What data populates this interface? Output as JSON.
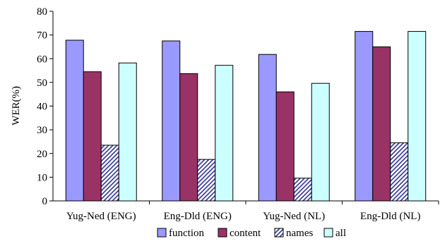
{
  "chart_data": {
    "type": "bar",
    "categories": [
      "Yug-Ned (ENG)",
      "Eng-Dld (ENG)",
      "Yug-Ned (NL)",
      "Eng-Dld (NL)"
    ],
    "series": [
      {
        "name": "function",
        "values": [
          67.8,
          67.5,
          61.8,
          71.5
        ],
        "color": "#9999ff",
        "pattern": "solid"
      },
      {
        "name": "content",
        "values": [
          54.5,
          53.7,
          46.0,
          65.0
        ],
        "color": "#993366",
        "pattern": "solid"
      },
      {
        "name": "names",
        "values": [
          23.5,
          17.5,
          9.6,
          24.5
        ],
        "color": "#333399",
        "pattern": "diagonal-hatch"
      },
      {
        "name": "all",
        "values": [
          58.2,
          57.2,
          49.6,
          71.5
        ],
        "color": "#ccffff",
        "pattern": "solid"
      }
    ],
    "title": "",
    "xlabel": "",
    "ylabel": "WER(%)",
    "ylim": [
      0,
      80
    ],
    "yticks": [
      "0",
      "10",
      "20",
      "30",
      "40",
      "50",
      "60",
      "70",
      "80"
    ],
    "grid": false,
    "legend": "bottom"
  }
}
